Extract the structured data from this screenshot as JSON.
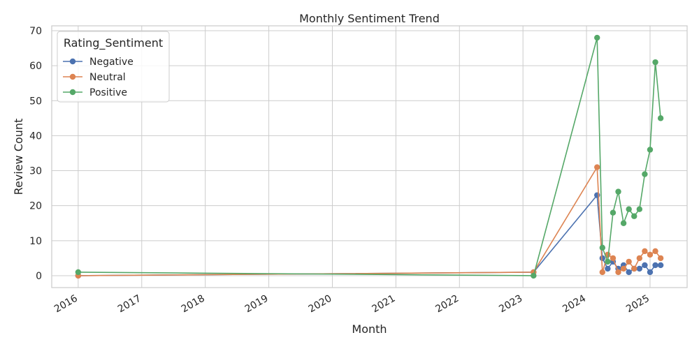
{
  "chart_data": {
    "type": "line",
    "title": "Monthly Sentiment Trend",
    "xlabel": "Month",
    "ylabel": "Review Count",
    "x_ticks": [
      "2016",
      "2017",
      "2018",
      "2019",
      "2020",
      "2021",
      "2022",
      "2023",
      "2024",
      "2025"
    ],
    "y_ticks": [
      "0",
      "10",
      "20",
      "30",
      "40",
      "50",
      "60",
      "70"
    ],
    "xlim": [
      "2015-08",
      "2025-08"
    ],
    "ylim": [
      -3.4,
      71.4
    ],
    "grid": true,
    "legend": {
      "title": "Rating_Sentiment",
      "placement": "top-left"
    },
    "series": [
      {
        "name": "Negative",
        "color": "#4c72b0",
        "points": [
          [
            "2016-01",
            0
          ],
          [
            "2023-03",
            1
          ],
          [
            "2024-03",
            23
          ],
          [
            "2024-04",
            5
          ],
          [
            "2024-05",
            2
          ],
          [
            "2024-06",
            4
          ],
          [
            "2024-07",
            2
          ],
          [
            "2024-08",
            3
          ],
          [
            "2024-09",
            1
          ],
          [
            "2024-10",
            2
          ],
          [
            "2024-11",
            2
          ],
          [
            "2024-12",
            3
          ],
          [
            "2025-01",
            1
          ],
          [
            "2025-02",
            3
          ],
          [
            "2025-03",
            3
          ]
        ]
      },
      {
        "name": "Neutral",
        "color": "#dd8452",
        "points": [
          [
            "2016-01",
            0
          ],
          [
            "2023-03",
            1
          ],
          [
            "2024-03",
            31
          ],
          [
            "2024-04",
            1
          ],
          [
            "2024-05",
            6
          ],
          [
            "2024-06",
            5
          ],
          [
            "2024-07",
            1
          ],
          [
            "2024-08",
            2
          ],
          [
            "2024-09",
            4
          ],
          [
            "2024-10",
            2
          ],
          [
            "2024-11",
            5
          ],
          [
            "2024-12",
            7
          ],
          [
            "2025-01",
            6
          ],
          [
            "2025-02",
            7
          ],
          [
            "2025-03",
            5
          ]
        ]
      },
      {
        "name": "Positive",
        "color": "#55a868",
        "points": [
          [
            "2016-01",
            1
          ],
          [
            "2023-03",
            0
          ],
          [
            "2024-03",
            68
          ],
          [
            "2024-04",
            8
          ],
          [
            "2024-05",
            4
          ],
          [
            "2024-06",
            18
          ],
          [
            "2024-07",
            24
          ],
          [
            "2024-08",
            15
          ],
          [
            "2024-09",
            19
          ],
          [
            "2024-10",
            17
          ],
          [
            "2024-11",
            19
          ],
          [
            "2024-12",
            29
          ],
          [
            "2025-01",
            36
          ],
          [
            "2025-02",
            61
          ],
          [
            "2025-03",
            45
          ]
        ]
      }
    ]
  }
}
